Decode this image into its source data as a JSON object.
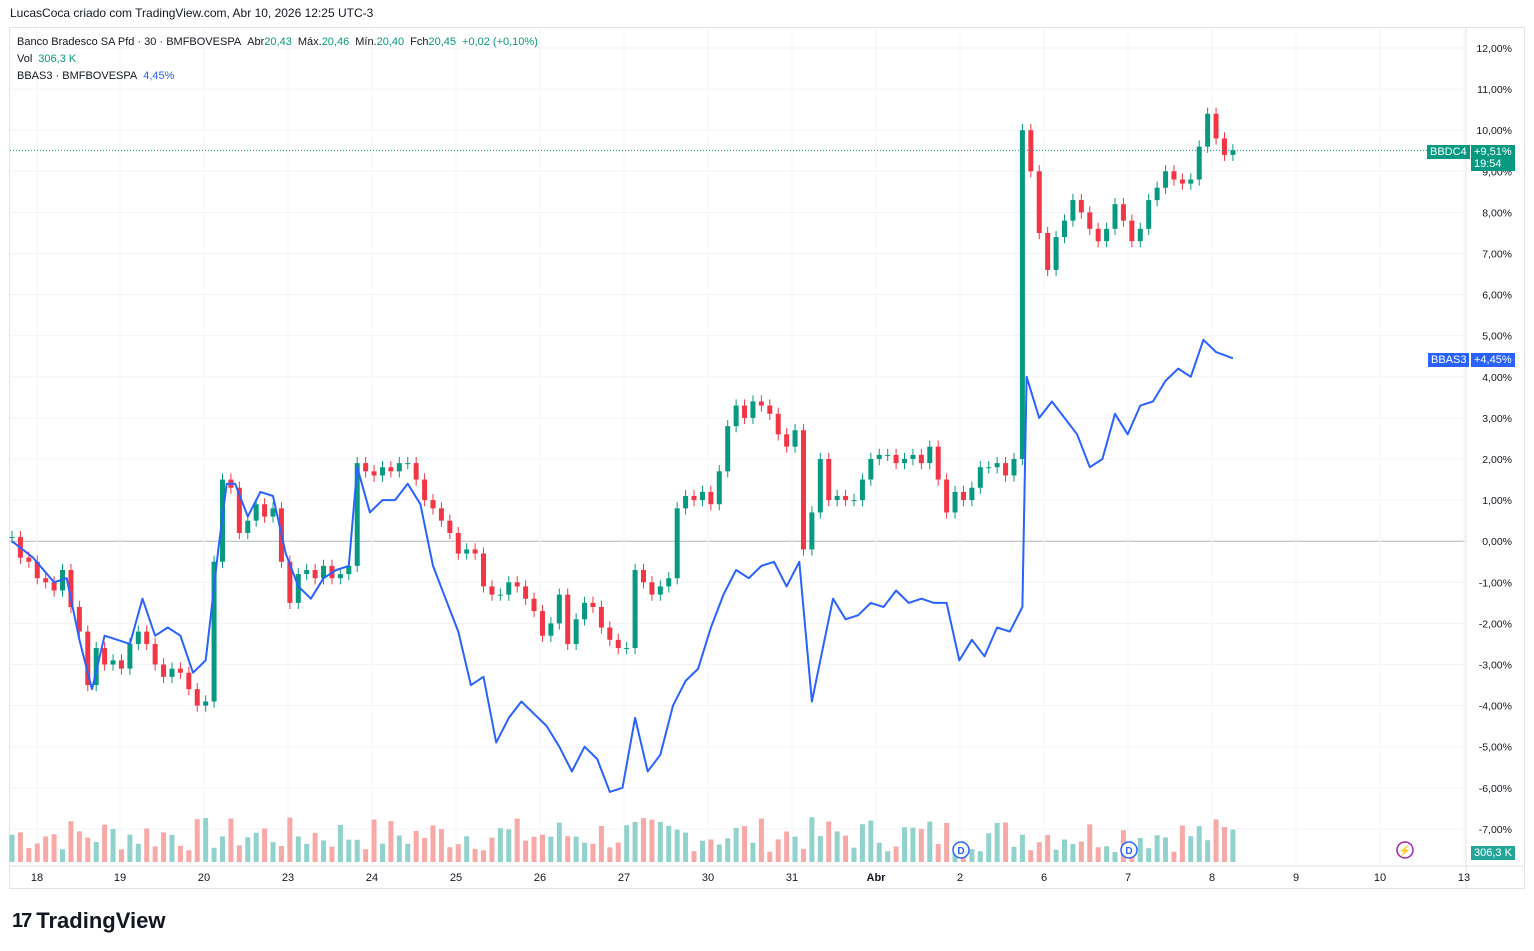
{
  "header": {
    "attribution": "LucasCoca criado com TradingView.com, Abr 10, 2026 12:25 UTC-3"
  },
  "legend": {
    "symbol": "Banco Bradesco SA Pfd · 30 · BMFBOVESPA",
    "abr_label": "Abr",
    "abr_value": "20,43",
    "max_label": "Máx.",
    "max_value": "20,46",
    "min_label": "Mín.",
    "min_value": "20,40",
    "fch_label": "Fch",
    "fch_value": "20,45",
    "change": "+0,02 (+0,10%)",
    "vol_label": "Vol",
    "vol_value": "306,3 K",
    "compare_symbol": "BBAS3 · BMFBOVESPA",
    "compare_value": "4,45%"
  },
  "tags": {
    "bbdc4_label": "BBDC4",
    "bbdc4_value": "+9,51%",
    "bbdc4_timer": "19:54",
    "bbas3_label": "BBAS3",
    "bbas3_value": "+4,45%",
    "volume_value": "306,3 K"
  },
  "brand": {
    "name": "TradingView"
  },
  "colors": {
    "up": "#089981",
    "down": "#f23645",
    "compare": "#2962ff",
    "vol_up": "#92d2cc",
    "vol_down": "#f7a9a7"
  },
  "chart_data": {
    "type": "line",
    "y_unit": "%",
    "ylim": [
      -8,
      12.5
    ],
    "y_ticks": [
      "12,00%",
      "11,00%",
      "10,00%",
      "9,00%",
      "8,00%",
      "7,00%",
      "6,00%",
      "5,00%",
      "4,00%",
      "3,00%",
      "2,00%",
      "1,00%",
      "0,00%",
      "-1,00%",
      "-2,00%",
      "-3,00%",
      "-4,00%",
      "-5,00%",
      "-6,00%",
      "-7,00%"
    ],
    "x_ticks": [
      "18",
      "19",
      "20",
      "23",
      "24",
      "25",
      "26",
      "27",
      "30",
      "31",
      "Abr",
      "2",
      "6",
      "7",
      "8",
      "9",
      "10",
      "13"
    ],
    "series": [
      {
        "name": "BBDC4",
        "kind": "candlestick",
        "points": [
          [
            0,
            0.1
          ],
          [
            0.2,
            -0.4
          ],
          [
            0.4,
            -0.5
          ],
          [
            0.6,
            -0.9
          ],
          [
            0.8,
            -1.0
          ],
          [
            1.0,
            -1.2
          ],
          [
            1.2,
            -0.7
          ],
          [
            1.4,
            -1.6
          ],
          [
            1.6,
            -2.2
          ],
          [
            1.8,
            -3.5
          ],
          [
            2.0,
            -2.6
          ],
          [
            2.2,
            -3.0
          ],
          [
            2.4,
            -2.9
          ],
          [
            2.6,
            -3.1
          ],
          [
            2.8,
            -2.5
          ],
          [
            3.0,
            -2.2
          ],
          [
            3.2,
            -2.5
          ],
          [
            3.4,
            -3.0
          ],
          [
            3.6,
            -3.3
          ],
          [
            3.8,
            -3.1
          ],
          [
            4.0,
            -3.2
          ],
          [
            4.2,
            -3.6
          ],
          [
            4.4,
            -4.0
          ],
          [
            4.6,
            -3.9
          ],
          [
            4.8,
            -0.5
          ],
          [
            5.0,
            1.5
          ],
          [
            5.2,
            1.3
          ],
          [
            5.4,
            0.2
          ],
          [
            5.6,
            0.5
          ],
          [
            5.8,
            0.9
          ],
          [
            6.0,
            0.6
          ],
          [
            6.2,
            0.8
          ],
          [
            6.4,
            -0.5
          ],
          [
            6.6,
            -1.5
          ],
          [
            6.8,
            -0.8
          ],
          [
            7.0,
            -0.7
          ],
          [
            7.2,
            -0.9
          ],
          [
            7.4,
            -0.6
          ],
          [
            7.6,
            -0.9
          ],
          [
            7.8,
            -0.8
          ],
          [
            8.0,
            -0.6
          ],
          [
            8.2,
            1.9
          ],
          [
            8.4,
            1.7
          ],
          [
            8.6,
            1.6
          ],
          [
            8.8,
            1.8
          ],
          [
            9.0,
            1.7
          ],
          [
            9.2,
            1.9
          ],
          [
            9.4,
            1.9
          ],
          [
            9.6,
            1.5
          ],
          [
            9.8,
            1.0
          ],
          [
            10.0,
            0.8
          ],
          [
            10.2,
            0.5
          ],
          [
            10.4,
            0.2
          ],
          [
            10.6,
            -0.3
          ],
          [
            10.8,
            -0.2
          ],
          [
            11.0,
            -0.3
          ],
          [
            11.2,
            -1.1
          ],
          [
            11.4,
            -1.3
          ],
          [
            11.6,
            -1.3
          ],
          [
            11.8,
            -1.0
          ],
          [
            12.0,
            -1.1
          ],
          [
            12.2,
            -1.4
          ],
          [
            12.4,
            -1.7
          ],
          [
            12.6,
            -2.3
          ],
          [
            12.8,
            -2.0
          ],
          [
            13.0,
            -1.3
          ],
          [
            13.2,
            -2.5
          ],
          [
            13.4,
            -1.9
          ],
          [
            13.6,
            -1.5
          ],
          [
            13.8,
            -1.6
          ],
          [
            14.0,
            -2.1
          ],
          [
            14.2,
            -2.4
          ],
          [
            14.4,
            -2.6
          ],
          [
            14.6,
            -2.6
          ],
          [
            14.8,
            -0.7
          ],
          [
            15.0,
            -1.0
          ],
          [
            15.2,
            -1.3
          ],
          [
            15.4,
            -1.1
          ],
          [
            15.6,
            -0.9
          ],
          [
            15.8,
            0.8
          ],
          [
            16.0,
            1.1
          ],
          [
            16.2,
            1.0
          ],
          [
            16.4,
            1.2
          ],
          [
            16.6,
            0.9
          ],
          [
            16.8,
            1.7
          ],
          [
            17.0,
            2.8
          ],
          [
            17.2,
            3.3
          ],
          [
            17.4,
            3.0
          ],
          [
            17.6,
            3.4
          ],
          [
            17.8,
            3.3
          ],
          [
            18.0,
            3.1
          ],
          [
            18.2,
            2.6
          ],
          [
            18.4,
            2.3
          ],
          [
            18.6,
            2.7
          ],
          [
            18.8,
            -0.2
          ],
          [
            19.0,
            0.7
          ],
          [
            19.2,
            2.0
          ],
          [
            19.4,
            1.0
          ],
          [
            19.6,
            1.1
          ],
          [
            19.8,
            1.0
          ],
          [
            20.0,
            1.0
          ],
          [
            20.2,
            1.5
          ],
          [
            20.4,
            2.0
          ],
          [
            20.6,
            2.1
          ],
          [
            20.8,
            2.1
          ],
          [
            21.0,
            1.9
          ],
          [
            21.2,
            2.0
          ],
          [
            21.4,
            2.1
          ],
          [
            21.6,
            1.9
          ],
          [
            21.8,
            2.3
          ],
          [
            22.0,
            1.5
          ],
          [
            22.2,
            0.7
          ],
          [
            22.4,
            1.2
          ],
          [
            22.6,
            1.0
          ],
          [
            22.8,
            1.3
          ],
          [
            23.0,
            1.8
          ],
          [
            23.2,
            1.8
          ],
          [
            23.4,
            1.9
          ],
          [
            23.6,
            1.6
          ],
          [
            23.8,
            2.0
          ],
          [
            24.0,
            10.0
          ],
          [
            24.2,
            9.0
          ],
          [
            24.4,
            7.5
          ],
          [
            24.6,
            6.6
          ],
          [
            24.8,
            7.4
          ],
          [
            25.0,
            7.8
          ],
          [
            25.2,
            8.3
          ],
          [
            25.4,
            8.0
          ],
          [
            25.6,
            7.6
          ],
          [
            25.8,
            7.3
          ],
          [
            26.0,
            7.6
          ],
          [
            26.2,
            8.2
          ],
          [
            26.4,
            7.8
          ],
          [
            26.6,
            7.3
          ],
          [
            26.8,
            7.6
          ],
          [
            27.0,
            8.3
          ],
          [
            27.2,
            8.6
          ],
          [
            27.4,
            9.0
          ],
          [
            27.6,
            8.8
          ],
          [
            27.8,
            8.7
          ],
          [
            28.0,
            8.8
          ],
          [
            28.2,
            9.6
          ],
          [
            28.4,
            10.4
          ],
          [
            28.6,
            9.8
          ],
          [
            28.8,
            9.4
          ],
          [
            29.0,
            9.51
          ]
        ]
      },
      {
        "name": "BBAS3",
        "kind": "line",
        "points": [
          [
            0,
            0
          ],
          [
            0.5,
            -0.4
          ],
          [
            1.0,
            -1.0
          ],
          [
            1.3,
            -0.9
          ],
          [
            1.6,
            -2.4
          ],
          [
            1.9,
            -3.6
          ],
          [
            2.2,
            -2.3
          ],
          [
            2.5,
            -2.4
          ],
          [
            2.8,
            -2.5
          ],
          [
            3.1,
            -1.4
          ],
          [
            3.4,
            -2.3
          ],
          [
            3.7,
            -2.1
          ],
          [
            4.0,
            -2.3
          ],
          [
            4.3,
            -3.2
          ],
          [
            4.6,
            -2.9
          ],
          [
            4.9,
            -0.2
          ],
          [
            5.1,
            1.4
          ],
          [
            5.3,
            1.4
          ],
          [
            5.6,
            0.6
          ],
          [
            5.9,
            1.2
          ],
          [
            6.2,
            1.1
          ],
          [
            6.5,
            -0.3
          ],
          [
            6.8,
            -1.1
          ],
          [
            7.1,
            -1.4
          ],
          [
            7.4,
            -0.9
          ],
          [
            7.7,
            -0.7
          ],
          [
            8.0,
            -0.6
          ],
          [
            8.2,
            1.8
          ],
          [
            8.5,
            0.7
          ],
          [
            8.8,
            1.0
          ],
          [
            9.1,
            1.0
          ],
          [
            9.4,
            1.4
          ],
          [
            9.7,
            0.9
          ],
          [
            10.0,
            -0.6
          ],
          [
            10.3,
            -1.4
          ],
          [
            10.6,
            -2.2
          ],
          [
            10.9,
            -3.5
          ],
          [
            11.2,
            -3.3
          ],
          [
            11.5,
            -4.9
          ],
          [
            11.8,
            -4.3
          ],
          [
            12.1,
            -3.9
          ],
          [
            12.4,
            -4.2
          ],
          [
            12.7,
            -4.5
          ],
          [
            13.0,
            -5.0
          ],
          [
            13.3,
            -5.6
          ],
          [
            13.6,
            -5.0
          ],
          [
            13.9,
            -5.3
          ],
          [
            14.2,
            -6.1
          ],
          [
            14.5,
            -6.0
          ],
          [
            14.8,
            -4.3
          ],
          [
            15.1,
            -5.6
          ],
          [
            15.4,
            -5.2
          ],
          [
            15.7,
            -4.0
          ],
          [
            16.0,
            -3.4
          ],
          [
            16.3,
            -3.1
          ],
          [
            16.6,
            -2.1
          ],
          [
            16.9,
            -1.3
          ],
          [
            17.2,
            -0.7
          ],
          [
            17.5,
            -0.9
          ],
          [
            17.8,
            -0.6
          ],
          [
            18.1,
            -0.5
          ],
          [
            18.4,
            -1.1
          ],
          [
            18.7,
            -0.5
          ],
          [
            19.0,
            -3.9
          ],
          [
            19.2,
            -2.9
          ],
          [
            19.5,
            -1.4
          ],
          [
            19.8,
            -1.9
          ],
          [
            20.1,
            -1.8
          ],
          [
            20.4,
            -1.5
          ],
          [
            20.7,
            -1.6
          ],
          [
            21.0,
            -1.2
          ],
          [
            21.3,
            -1.5
          ],
          [
            21.6,
            -1.4
          ],
          [
            21.9,
            -1.5
          ],
          [
            22.2,
            -1.5
          ],
          [
            22.5,
            -2.9
          ],
          [
            22.8,
            -2.4
          ],
          [
            23.1,
            -2.8
          ],
          [
            23.4,
            -2.1
          ],
          [
            23.7,
            -2.2
          ],
          [
            24.0,
            -1.6
          ],
          [
            24.1,
            4.0
          ],
          [
            24.4,
            3.0
          ],
          [
            24.7,
            3.4
          ],
          [
            25.0,
            3.0
          ],
          [
            25.3,
            2.6
          ],
          [
            25.6,
            1.8
          ],
          [
            25.9,
            2.0
          ],
          [
            26.2,
            3.1
          ],
          [
            26.5,
            2.6
          ],
          [
            26.8,
            3.3
          ],
          [
            27.1,
            3.4
          ],
          [
            27.4,
            3.9
          ],
          [
            27.7,
            4.2
          ],
          [
            28.0,
            4.0
          ],
          [
            28.3,
            4.9
          ],
          [
            28.6,
            4.6
          ],
          [
            29.0,
            4.45
          ]
        ]
      }
    ],
    "volume": {
      "unit": "K",
      "last": "306,3 K"
    },
    "events": [
      "D",
      "D",
      "⚡"
    ]
  }
}
